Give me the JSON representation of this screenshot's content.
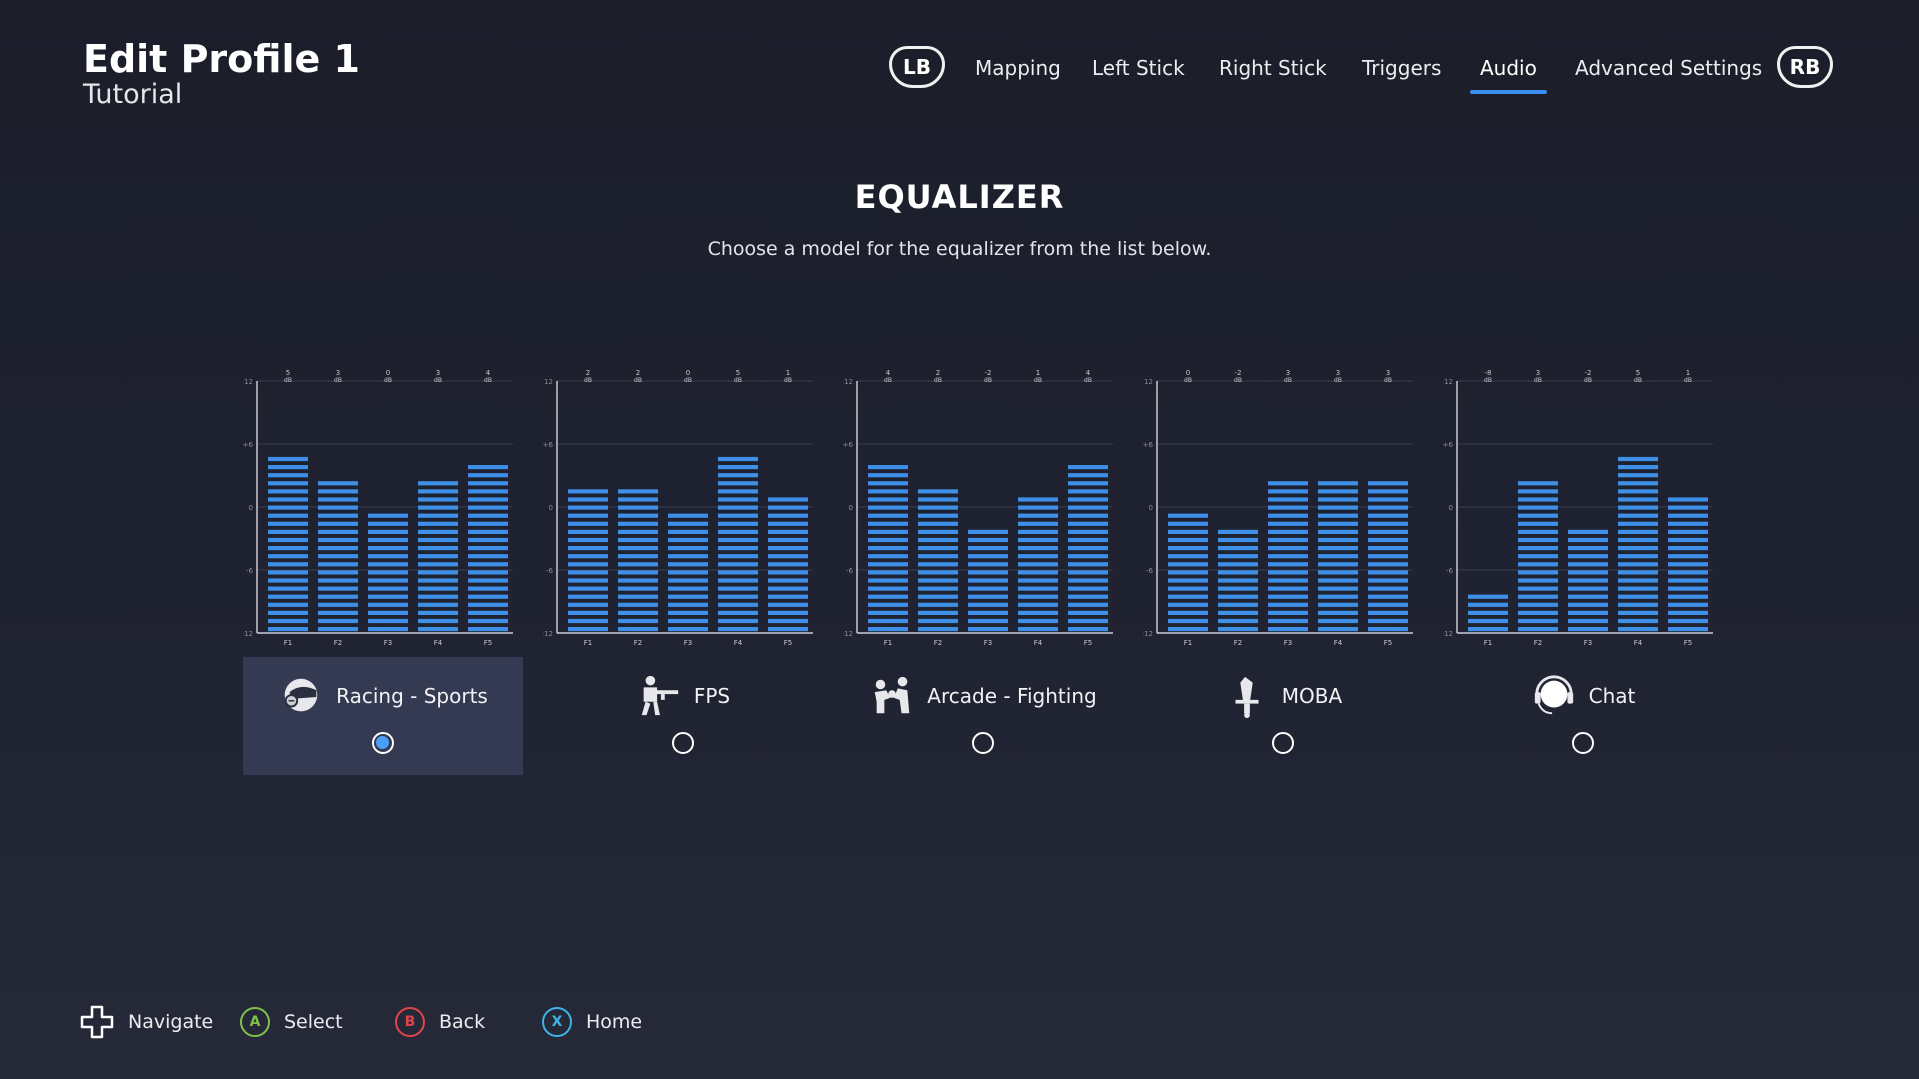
{
  "header": {
    "title": "Edit Profile 1",
    "subtitle": "Tutorial"
  },
  "nav": {
    "left_bumper": "LB",
    "right_bumper": "RB",
    "tabs": [
      {
        "label": "Mapping",
        "active": false
      },
      {
        "label": "Left Stick",
        "active": false
      },
      {
        "label": "Right Stick",
        "active": false
      },
      {
        "label": "Triggers",
        "active": false
      },
      {
        "label": "Audio",
        "active": true
      },
      {
        "label": "Advanced Settings",
        "active": false
      }
    ]
  },
  "equalizer": {
    "title": "EQUALIZER",
    "description": "Choose a model for the equalizer from the list below.",
    "axis_ticks": [
      "+12",
      "+6",
      "0",
      "-6",
      "-12"
    ],
    "bands": [
      "F1",
      "F2",
      "F3",
      "F4",
      "F5"
    ],
    "unit": "dB",
    "ylim": [
      -12,
      12
    ],
    "accent": "#3d8fe8",
    "models": [
      {
        "name": "Racing - Sports",
        "icon": "helmet-icon",
        "selected": true,
        "values": [
          5,
          3,
          0,
          3,
          4
        ]
      },
      {
        "name": "FPS",
        "icon": "soldier-icon",
        "selected": false,
        "values": [
          2,
          2,
          0,
          5,
          1
        ]
      },
      {
        "name": "Arcade - Fighting",
        "icon": "fighters-icon",
        "selected": false,
        "values": [
          4,
          2,
          -2,
          1,
          4
        ]
      },
      {
        "name": "MOBA",
        "icon": "sword-icon",
        "selected": false,
        "values": [
          0,
          -2,
          3,
          3,
          3
        ]
      },
      {
        "name": "Chat",
        "icon": "headset-icon",
        "selected": false,
        "values": [
          -8,
          3,
          -2,
          5,
          1
        ]
      }
    ]
  },
  "footer": {
    "hints": [
      {
        "glyph": "",
        "label": "Navigate",
        "icon": "dpad-icon",
        "color": "#ffffff"
      },
      {
        "glyph": "A",
        "label": "Select",
        "icon": "a-button-icon",
        "color": "#7fc04a"
      },
      {
        "glyph": "B",
        "label": "Back",
        "icon": "b-button-icon",
        "color": "#e0454a"
      },
      {
        "glyph": "X",
        "label": "Home",
        "icon": "x-button-icon",
        "color": "#3fb3e8"
      }
    ]
  }
}
